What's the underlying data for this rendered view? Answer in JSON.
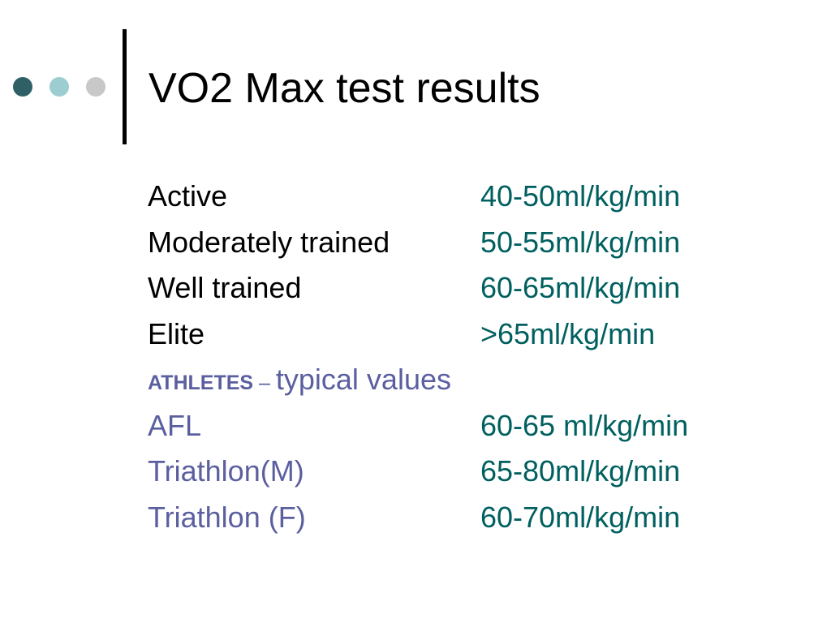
{
  "slide": {
    "title": "VO2 Max test results",
    "colors": {
      "dot_1": "#2f6065",
      "dot_2": "#9ccdd0",
      "dot_3": "#c8c8c8",
      "text_primary": "#000000",
      "value_color": "#005f5f",
      "athlete_color": "#5b5fa0"
    },
    "general_levels": [
      {
        "label": "Active",
        "value": "40-50ml/kg/min"
      },
      {
        "label": "Moderately trained",
        "value": "50-55ml/kg/min"
      },
      {
        "label": "Well trained",
        "value": "60-65ml/kg/min"
      },
      {
        "label": "Elite",
        "value": ">65ml/kg/min"
      }
    ],
    "athletes_heading": {
      "strong": "ATHLETES",
      "dash": " – ",
      "rest": "typical values"
    },
    "athletes": [
      {
        "label": "AFL",
        "value": "60-65 ml/kg/min"
      },
      {
        "label": "Triathlon(M)",
        "value": "65-80ml/kg/min"
      },
      {
        "label": "Triathlon (F)",
        "value": "60-70ml/kg/min"
      }
    ]
  }
}
